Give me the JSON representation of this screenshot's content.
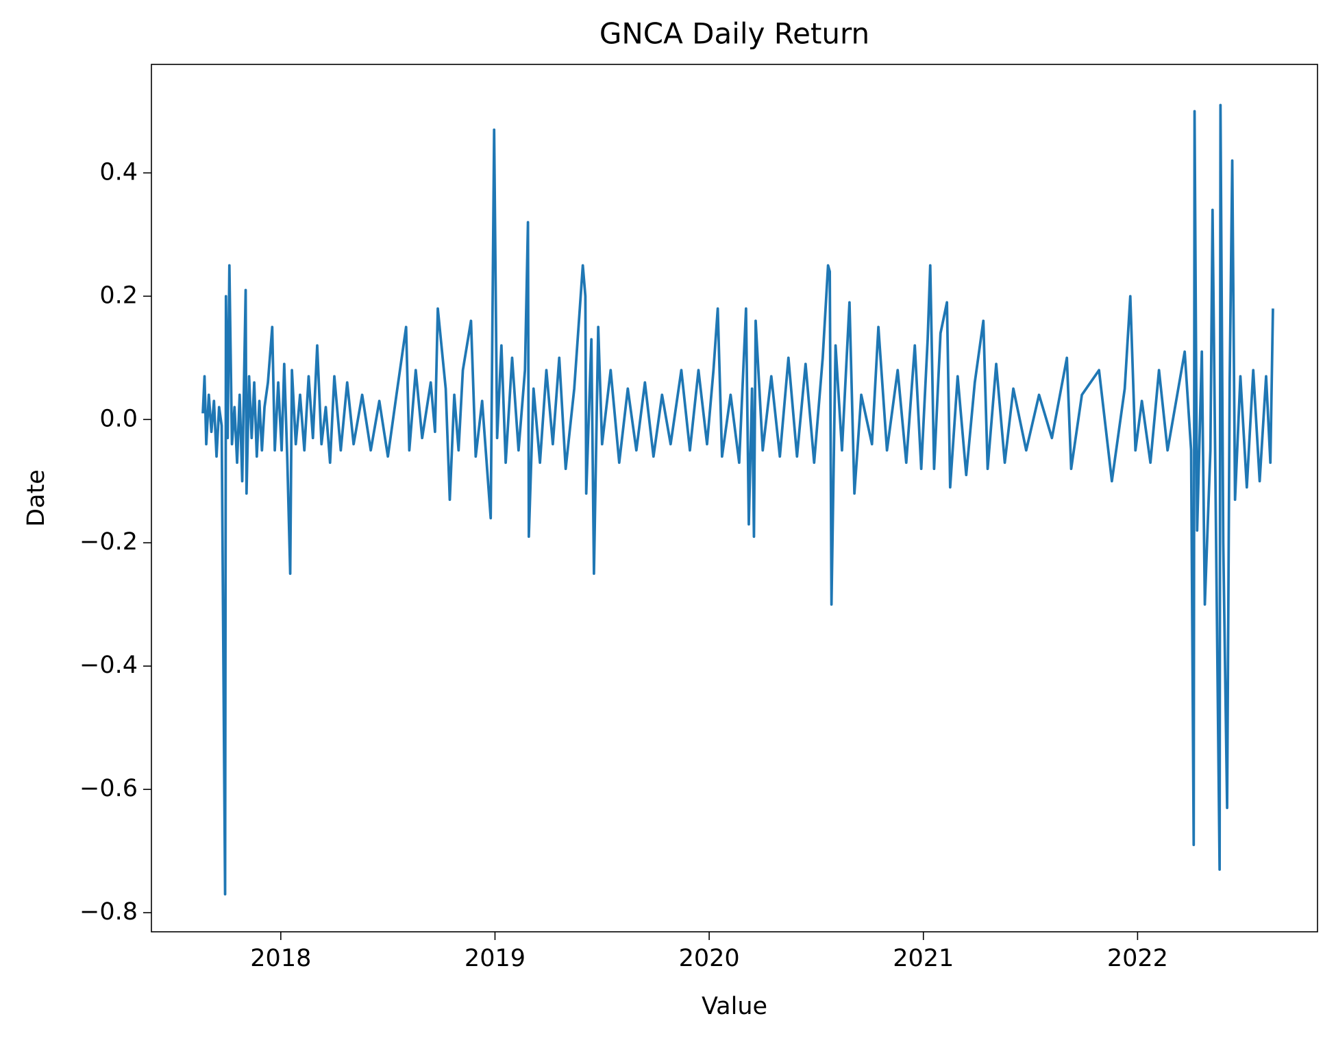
{
  "chart_data": {
    "type": "line",
    "title": "GNCA Daily Return",
    "x_label": "Value",
    "y_label": "Date",
    "x": [
      2017.636,
      2017.644,
      2017.652,
      2017.664,
      2017.676,
      2017.688,
      2017.7,
      2017.712,
      2017.724,
      2017.74,
      2017.744,
      2017.752,
      2017.76,
      2017.772,
      2017.784,
      2017.796,
      2017.808,
      2017.82,
      2017.836,
      2017.84,
      2017.852,
      2017.864,
      2017.876,
      2017.888,
      2017.9,
      2017.912,
      2017.924,
      2017.94,
      2017.96,
      2017.972,
      2017.988,
      2018.004,
      2018.016,
      2018.03,
      2018.044,
      2018.052,
      2018.07,
      2018.09,
      2018.11,
      2018.13,
      2018.15,
      2018.17,
      2018.19,
      2018.21,
      2018.23,
      2018.25,
      2018.28,
      2018.31,
      2018.34,
      2018.38,
      2018.42,
      2018.46,
      2018.5,
      2018.54,
      2018.585,
      2018.6,
      2018.63,
      2018.66,
      2018.7,
      2018.72,
      2018.733,
      2018.77,
      2018.789,
      2018.81,
      2018.83,
      2018.85,
      2018.888,
      2018.91,
      2018.94,
      2018.98,
      2018.996,
      2019.01,
      2019.03,
      2019.05,
      2019.08,
      2019.11,
      2019.14,
      2019.154,
      2019.158,
      2019.18,
      2019.21,
      2019.24,
      2019.27,
      2019.3,
      2019.33,
      2019.37,
      2019.41,
      2019.422,
      2019.426,
      2019.45,
      2019.462,
      2019.482,
      2019.5,
      2019.54,
      2019.58,
      2019.62,
      2019.66,
      2019.7,
      2019.74,
      2019.78,
      2019.82,
      2019.87,
      2019.91,
      2019.95,
      2019.99,
      2020.02,
      2020.04,
      2020.06,
      2020.1,
      2020.14,
      2020.172,
      2020.185,
      2020.2,
      2020.209,
      2020.217,
      2020.25,
      2020.29,
      2020.33,
      2020.37,
      2020.41,
      2020.45,
      2020.49,
      2020.53,
      2020.555,
      2020.563,
      2020.571,
      2020.59,
      2020.62,
      2020.655,
      2020.678,
      2020.71,
      2020.76,
      2020.79,
      2020.83,
      2020.88,
      2020.92,
      2020.96,
      2020.99,
      2021.02,
      2021.032,
      2021.05,
      2021.08,
      2021.11,
      2021.125,
      2021.16,
      2021.2,
      2021.24,
      2021.28,
      2021.3,
      2021.34,
      2021.38,
      2021.42,
      2021.48,
      2021.54,
      2021.6,
      2021.67,
      2021.69,
      2021.74,
      2021.82,
      2021.88,
      2021.94,
      2021.966,
      2021.99,
      2022.02,
      2022.06,
      2022.1,
      2022.14,
      2022.18,
      2022.22,
      2022.25,
      2022.262,
      2022.266,
      2022.278,
      2022.3,
      2022.314,
      2022.34,
      2022.35,
      2022.383,
      2022.387,
      2022.4,
      2022.418,
      2022.43,
      2022.442,
      2022.455,
      2022.48,
      2022.51,
      2022.54,
      2022.57,
      2022.6,
      2022.62,
      2022.632
    ],
    "series": [
      {
        "name": "Daily Return",
        "color": "#1f77b4",
        "values": [
          0.01,
          0.07,
          -0.04,
          0.04,
          -0.02,
          0.03,
          -0.06,
          0.02,
          -0.01,
          -0.77,
          0.2,
          -0.03,
          0.25,
          -0.04,
          0.02,
          -0.07,
          0.04,
          -0.1,
          0.21,
          -0.12,
          0.07,
          -0.03,
          0.06,
          -0.06,
          0.03,
          -0.05,
          0.02,
          0.06,
          0.15,
          -0.05,
          0.06,
          -0.05,
          0.09,
          -0.06,
          -0.25,
          0.08,
          -0.04,
          0.04,
          -0.05,
          0.07,
          -0.03,
          0.12,
          -0.04,
          0.02,
          -0.07,
          0.07,
          -0.05,
          0.06,
          -0.04,
          0.04,
          -0.05,
          0.03,
          -0.06,
          0.04,
          0.15,
          -0.05,
          0.08,
          -0.03,
          0.06,
          -0.02,
          0.18,
          0.05,
          -0.13,
          0.04,
          -0.05,
          0.08,
          0.16,
          -0.06,
          0.03,
          -0.16,
          0.47,
          -0.03,
          0.12,
          -0.07,
          0.1,
          -0.05,
          0.08,
          0.32,
          -0.19,
          0.05,
          -0.07,
          0.08,
          -0.04,
          0.1,
          -0.08,
          0.05,
          0.25,
          0.2,
          -0.12,
          0.13,
          -0.25,
          0.15,
          -0.04,
          0.08,
          -0.07,
          0.05,
          -0.05,
          0.06,
          -0.06,
          0.04,
          -0.04,
          0.08,
          -0.05,
          0.08,
          -0.04,
          0.08,
          0.18,
          -0.06,
          0.04,
          -0.07,
          0.18,
          -0.17,
          0.05,
          -0.19,
          0.16,
          -0.05,
          0.07,
          -0.06,
          0.1,
          -0.06,
          0.09,
          -0.07,
          0.1,
          0.25,
          0.24,
          -0.3,
          0.12,
          -0.05,
          0.19,
          -0.12,
          0.04,
          -0.04,
          0.15,
          -0.05,
          0.08,
          -0.07,
          0.12,
          -0.08,
          0.13,
          0.25,
          -0.08,
          0.14,
          0.19,
          -0.11,
          0.07,
          -0.09,
          0.06,
          0.16,
          -0.08,
          0.09,
          -0.07,
          0.05,
          -0.05,
          0.04,
          -0.03,
          0.1,
          -0.08,
          0.04,
          0.08,
          -0.1,
          0.05,
          0.2,
          -0.05,
          0.03,
          -0.07,
          0.08,
          -0.05,
          0.03,
          0.11,
          -0.05,
          -0.69,
          0.5,
          -0.18,
          0.11,
          -0.3,
          -0.05,
          0.34,
          -0.73,
          0.51,
          -0.2,
          -0.63,
          0.06,
          0.42,
          -0.13,
          0.07,
          -0.11,
          0.08,
          -0.1,
          0.07,
          -0.07,
          0.18
        ]
      }
    ],
    "xlim": [
      2017.396,
      2022.84
    ],
    "ylim": [
      -0.831,
      0.576
    ],
    "xticks": [
      2018,
      2019,
      2020,
      2021,
      2022
    ],
    "yticks": [
      {
        "value": -0.8,
        "label": "−0.8"
      },
      {
        "value": -0.6,
        "label": "−0.6"
      },
      {
        "value": -0.4,
        "label": "−0.4"
      },
      {
        "value": -0.2,
        "label": "−0.2"
      },
      {
        "value": 0,
        "label": "0.0"
      },
      0.2,
      0.4
    ],
    "grid": false
  }
}
